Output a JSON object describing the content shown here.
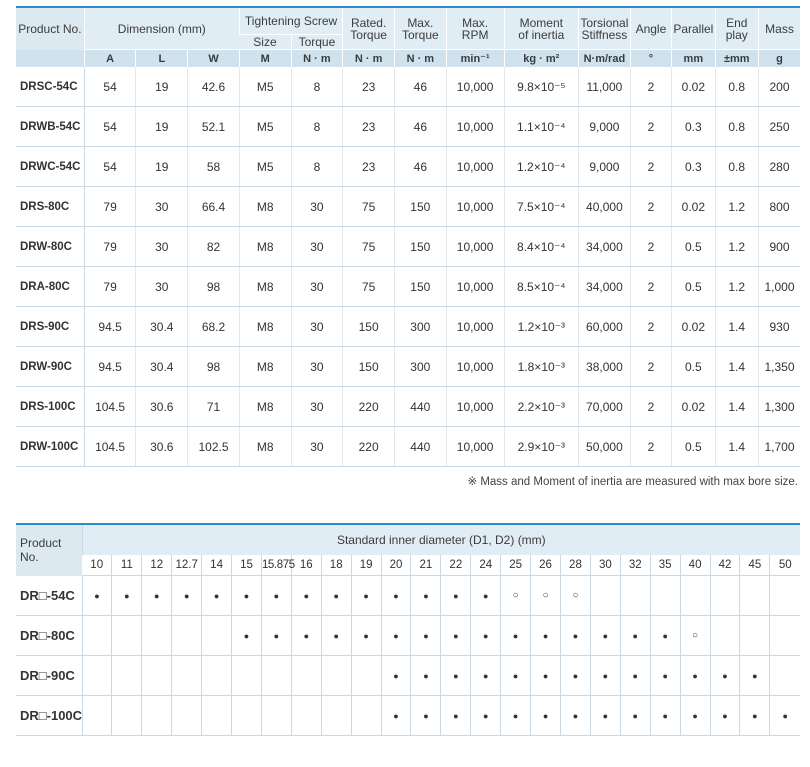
{
  "spec_table": {
    "headers": {
      "product_no": "Product No.",
      "dimension": "Dimension (mm)",
      "tightening_screw": "Tightening Screw",
      "size": "Size",
      "torque": "Torque",
      "rated_torque_1": "Rated.",
      "rated_torque_2": "Torque",
      "max_torque_1": "Max.",
      "max_torque_2": "Torque",
      "max_rpm_1": "Max.",
      "max_rpm_2": "RPM",
      "moment_1": "Moment",
      "moment_2": "of inertia",
      "torsional_1": "Torsional",
      "torsional_2": "Stiffness",
      "angle": "Angle",
      "parallel": "Parallel",
      "end_play_1": "End",
      "end_play_2": "play",
      "mass": "Mass"
    },
    "units": {
      "a": "A",
      "l": "L",
      "w": "W",
      "m": "M",
      "nm1": "N · m",
      "nm2": "N · m",
      "nm3": "N · m",
      "rpm": "min⁻¹",
      "inertia": "kg · m²",
      "stiff": "N·m/rad",
      "angle": "°",
      "parallel": "mm",
      "endplay": "±mm",
      "mass": "g"
    },
    "rows": [
      {
        "pn": "DRSC-54C",
        "a": "54",
        "l": "19",
        "w": "42.6",
        "m": "M5",
        "screw_torque": "8",
        "rated": "23",
        "max": "46",
        "rpm": "10,000",
        "inertia": "9.8×10⁻⁵",
        "stiff": "11,000",
        "angle": "2",
        "parallel": "0.02",
        "endplay": "0.8",
        "mass": "200"
      },
      {
        "pn": "DRWB-54C",
        "a": "54",
        "l": "19",
        "w": "52.1",
        "m": "M5",
        "screw_torque": "8",
        "rated": "23",
        "max": "46",
        "rpm": "10,000",
        "inertia": "1.1×10⁻⁴",
        "stiff": "9,000",
        "angle": "2",
        "parallel": "0.3",
        "endplay": "0.8",
        "mass": "250"
      },
      {
        "pn": "DRWC-54C",
        "a": "54",
        "l": "19",
        "w": "58",
        "m": "M5",
        "screw_torque": "8",
        "rated": "23",
        "max": "46",
        "rpm": "10,000",
        "inertia": "1.2×10⁻⁴",
        "stiff": "9,000",
        "angle": "2",
        "parallel": "0.3",
        "endplay": "0.8",
        "mass": "280"
      },
      {
        "pn": "DRS-80C",
        "a": "79",
        "l": "30",
        "w": "66.4",
        "m": "M8",
        "screw_torque": "30",
        "rated": "75",
        "max": "150",
        "rpm": "10,000",
        "inertia": "7.5×10⁻⁴",
        "stiff": "40,000",
        "angle": "2",
        "parallel": "0.02",
        "endplay": "1.2",
        "mass": "800"
      },
      {
        "pn": "DRW-80C",
        "a": "79",
        "l": "30",
        "w": "82",
        "m": "M8",
        "screw_torque": "30",
        "rated": "75",
        "max": "150",
        "rpm": "10,000",
        "inertia": "8.4×10⁻⁴",
        "stiff": "34,000",
        "angle": "2",
        "parallel": "0.5",
        "endplay": "1.2",
        "mass": "900"
      },
      {
        "pn": "DRA-80C",
        "a": "79",
        "l": "30",
        "w": "98",
        "m": "M8",
        "screw_torque": "30",
        "rated": "75",
        "max": "150",
        "rpm": "10,000",
        "inertia": "8.5×10⁻⁴",
        "stiff": "34,000",
        "angle": "2",
        "parallel": "0.5",
        "endplay": "1.2",
        "mass": "1,000"
      },
      {
        "pn": "DRS-90C",
        "a": "94.5",
        "l": "30.4",
        "w": "68.2",
        "m": "M8",
        "screw_torque": "30",
        "rated": "150",
        "max": "300",
        "rpm": "10,000",
        "inertia": "1.2×10⁻³",
        "stiff": "60,000",
        "angle": "2",
        "parallel": "0.02",
        "endplay": "1.4",
        "mass": "930"
      },
      {
        "pn": "DRW-90C",
        "a": "94.5",
        "l": "30.4",
        "w": "98",
        "m": "M8",
        "screw_torque": "30",
        "rated": "150",
        "max": "300",
        "rpm": "10,000",
        "inertia": "1.8×10⁻³",
        "stiff": "38,000",
        "angle": "2",
        "parallel": "0.5",
        "endplay": "1.4",
        "mass": "1,350"
      },
      {
        "pn": "DRS-100C",
        "a": "104.5",
        "l": "30.6",
        "w": "71",
        "m": "M8",
        "screw_torque": "30",
        "rated": "220",
        "max": "440",
        "rpm": "10,000",
        "inertia": "2.2×10⁻³",
        "stiff": "70,000",
        "angle": "2",
        "parallel": "0.02",
        "endplay": "1.4",
        "mass": "1,300"
      },
      {
        "pn": "DRW-100C",
        "a": "104.5",
        "l": "30.6",
        "w": "102.5",
        "m": "M8",
        "screw_torque": "30",
        "rated": "220",
        "max": "440",
        "rpm": "10,000",
        "inertia": "2.9×10⁻³",
        "stiff": "50,000",
        "angle": "2",
        "parallel": "0.5",
        "endplay": "1.4",
        "mass": "1,700"
      }
    ],
    "note": "※ Mass and Moment of inertia are measured with max bore size."
  },
  "diameter_table": {
    "product_no": "Product No.",
    "title": "Standard inner diameter (D1, D2) (mm)",
    "sizes": [
      "10",
      "11",
      "12",
      "12.7",
      "14",
      "15",
      "15.875",
      "16",
      "18",
      "19",
      "20",
      "21",
      "22",
      "24",
      "25",
      "26",
      "28",
      "30",
      "32",
      "35",
      "40",
      "42",
      "45",
      "50"
    ],
    "rows": [
      {
        "pn": "DR□-54C",
        "marks": [
          "●",
          "●",
          "●",
          "●",
          "●",
          "●",
          "●",
          "●",
          "●",
          "●",
          "●",
          "●",
          "●",
          "●",
          "○",
          "○",
          "○",
          "",
          "",
          "",
          "",
          "",
          "",
          ""
        ]
      },
      {
        "pn": "DR□-80C",
        "marks": [
          "",
          "",
          "",
          "",
          "",
          "●",
          "●",
          "●",
          "●",
          "●",
          "●",
          "●",
          "●",
          "●",
          "●",
          "●",
          "●",
          "●",
          "●",
          "●",
          "○",
          "",
          "",
          ""
        ]
      },
      {
        "pn": "DR□-90C",
        "marks": [
          "",
          "",
          "",
          "",
          "",
          "",
          "",
          "",
          "",
          "",
          "●",
          "●",
          "●",
          "●",
          "●",
          "●",
          "●",
          "●",
          "●",
          "●",
          "●",
          "●",
          "●",
          ""
        ]
      },
      {
        "pn": "DR□-100C",
        "marks": [
          "",
          "",
          "",
          "",
          "",
          "",
          "",
          "",
          "",
          "",
          "●",
          "●",
          "●",
          "●",
          "●",
          "●",
          "●",
          "●",
          "●",
          "●",
          "●",
          "●",
          "●",
          "●"
        ]
      }
    ]
  }
}
